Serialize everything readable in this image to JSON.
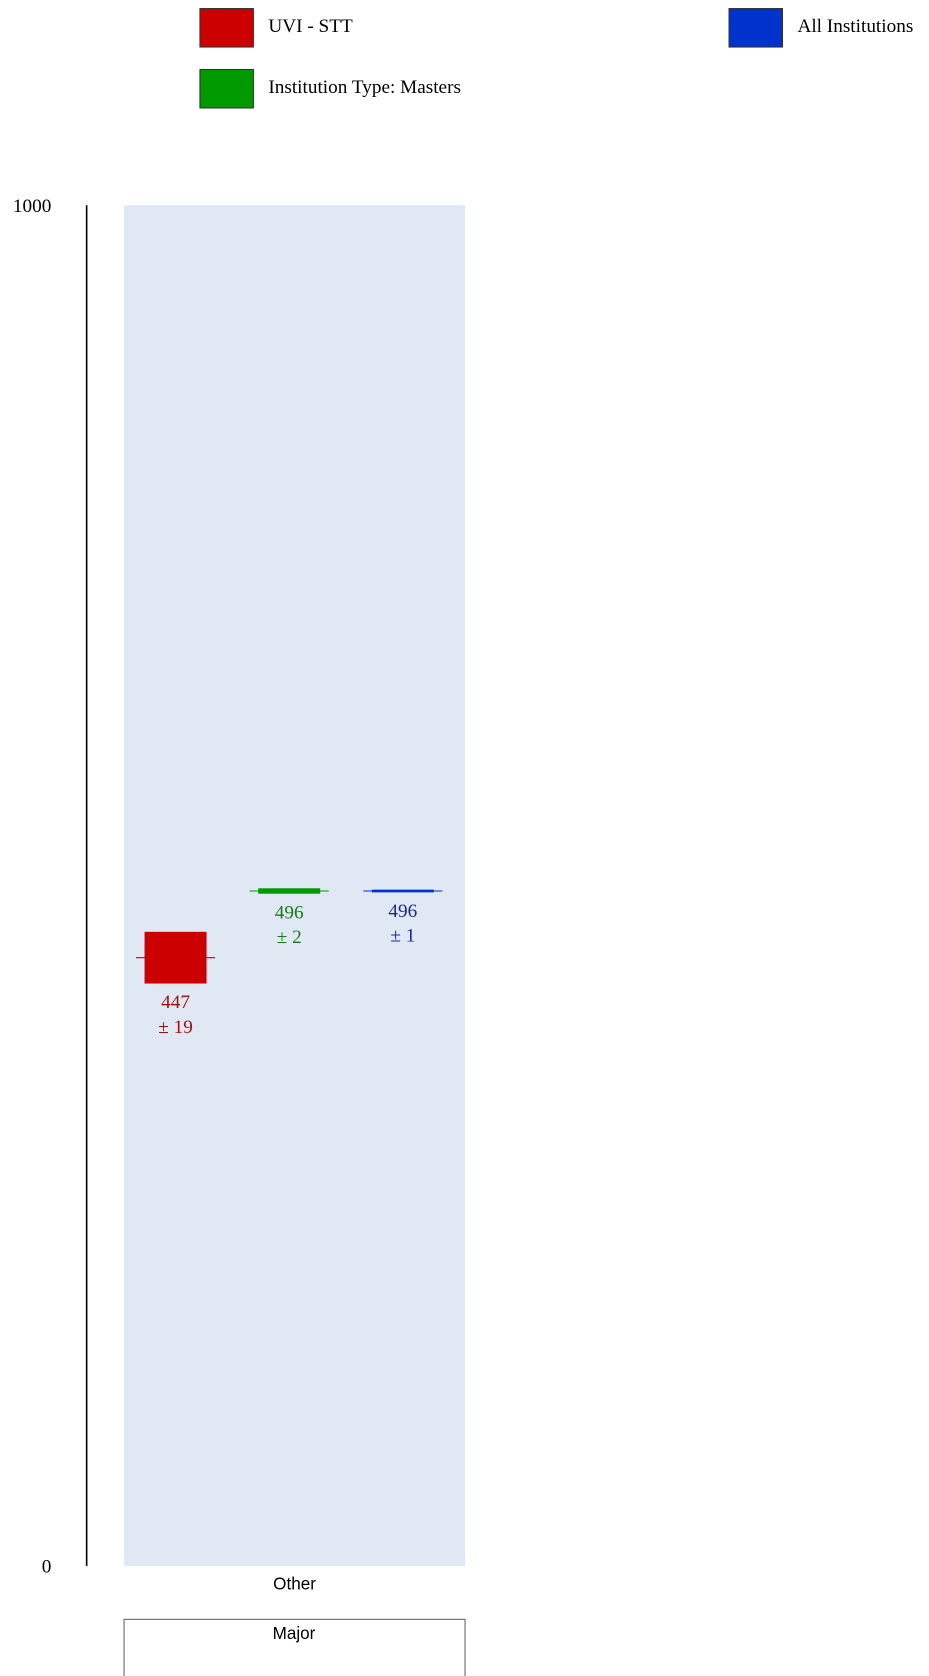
{
  "chart_data": {
    "type": "errorbox",
    "categories": [
      "Other"
    ],
    "x_label": "Major",
    "series": [
      {
        "name": "UVI - STT",
        "color": "#cc0000",
        "label_color": "#a01010",
        "values": [
          447
        ],
        "errors": [
          19
        ],
        "error_labels": [
          "± 19"
        ]
      },
      {
        "name": "Institution Type: Masters",
        "color": "#009900",
        "label_color": "#1a7a1a",
        "values": [
          496
        ],
        "errors": [
          2
        ],
        "error_labels": [
          "± 2"
        ]
      },
      {
        "name": "All Institutions",
        "color": "#0033cc",
        "label_color": "#1a2a8a",
        "values": [
          496
        ],
        "errors": [
          1
        ],
        "error_labels": [
          "± 1"
        ]
      }
    ],
    "ylim": [
      0,
      1000
    ],
    "yticks": [
      0,
      1000
    ],
    "plot_background": "#dfe8f3"
  }
}
